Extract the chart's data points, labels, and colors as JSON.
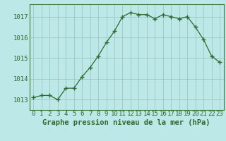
{
  "x": [
    0,
    1,
    2,
    3,
    4,
    5,
    6,
    7,
    8,
    9,
    10,
    11,
    12,
    13,
    14,
    15,
    16,
    17,
    18,
    19,
    20,
    21,
    22,
    23
  ],
  "y": [
    1013.1,
    1013.2,
    1013.2,
    1013.0,
    1013.55,
    1013.55,
    1014.1,
    1014.55,
    1015.1,
    1015.75,
    1016.3,
    1017.0,
    1017.2,
    1017.1,
    1017.1,
    1016.9,
    1017.1,
    1017.0,
    1016.9,
    1017.0,
    1016.5,
    1015.9,
    1015.1,
    1014.8
  ],
  "line_color": "#2d6a2d",
  "marker": "+",
  "bg_color": "#bde8e8",
  "grid_color": "#9dbcbc",
  "xlabel": "Graphe pression niveau de la mer (hPa)",
  "yticks": [
    1013,
    1014,
    1015,
    1016,
    1017
  ],
  "xticks": [
    0,
    1,
    2,
    3,
    4,
    5,
    6,
    7,
    8,
    9,
    10,
    11,
    12,
    13,
    14,
    15,
    16,
    17,
    18,
    19,
    20,
    21,
    22,
    23
  ],
  "xlim": [
    -0.5,
    23.5
  ],
  "ylim": [
    1012.5,
    1017.6
  ],
  "tick_color": "#2d6a2d",
  "xlabel_color": "#2d6a2d",
  "xlabel_fontsize": 7.5,
  "tick_fontsize": 6.5,
  "spine_color": "#3a7a3a"
}
